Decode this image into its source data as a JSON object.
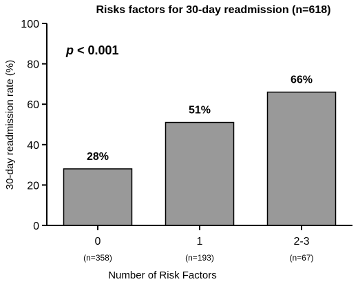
{
  "chart_data": {
    "type": "bar",
    "title": "Risks factors for 30-day readmission (n=618)",
    "ylabel": "30-day readmission rate (%)",
    "xlabel": "Number of Risk Factors",
    "categories": [
      "0",
      "1",
      "2-3"
    ],
    "category_sublabels": [
      "(n=358)",
      "(n=193)",
      "(n=67)"
    ],
    "values": [
      28,
      51,
      66
    ],
    "data_labels": [
      "28%",
      "51%",
      "66%"
    ],
    "ylim": [
      0,
      100
    ],
    "yticks": [
      0,
      20,
      40,
      60,
      80,
      100
    ],
    "grid": false,
    "annotation": {
      "p_symbol": "p",
      "text": " < 0.001"
    },
    "colors": {
      "bar_fill": "#999999",
      "bar_stroke": "#000000"
    }
  }
}
